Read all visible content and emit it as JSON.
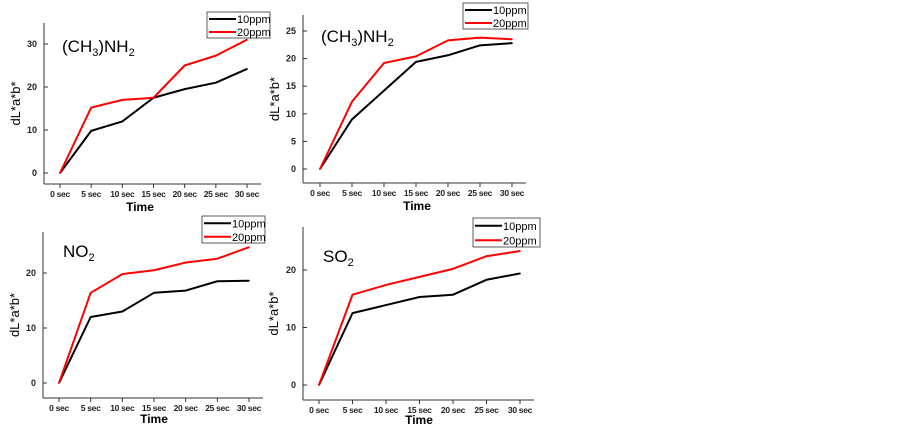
{
  "colors": {
    "10ppm": "#000000",
    "20ppm": "#ff0000"
  },
  "chart_data": [
    {
      "type": "line",
      "title": "(CH3)NH2",
      "title_main": "(CH",
      "title_sub1": "3",
      "title_mid": ")NH",
      "title_sub2": "2",
      "xlabel": "Time",
      "ylabel": "dL*a*b*",
      "categories": [
        "0 sec",
        "5 sec",
        "10 sec",
        "15 sec",
        "20 sec",
        "25 sec",
        "30 sec"
      ],
      "yticks": [
        0,
        10,
        20,
        30
      ],
      "ylim": [
        -2.5,
        35
      ],
      "legend": "top-right",
      "series": [
        {
          "name": "10ppm",
          "values": [
            0,
            9.8,
            12,
            17.5,
            19.5,
            21,
            24.2
          ]
        },
        {
          "name": "20ppm",
          "values": [
            0,
            15.2,
            17,
            17.5,
            25,
            27.3,
            31
          ]
        }
      ]
    },
    {
      "type": "line",
      "title": "(CH3)NH2",
      "title_main": "(CH",
      "title_sub1": "3",
      "title_mid": ")NH",
      "title_sub2": "2",
      "xlabel": "Time",
      "ylabel": "dL*a*b*",
      "categories": [
        "0 sec",
        "5 sec",
        "10 sec",
        "15 sec",
        "20 sec",
        "25 sec",
        "30 sec"
      ],
      "yticks": [
        0,
        5,
        10,
        15,
        20,
        25
      ],
      "ylim": [
        -2.5,
        27.5
      ],
      "legend": "top-right",
      "series": [
        {
          "name": "10ppm",
          "values": [
            0,
            9,
            14.2,
            19.4,
            20.6,
            22.4,
            22.8
          ]
        },
        {
          "name": "20ppm",
          "values": [
            0,
            12.2,
            19.2,
            20.4,
            23.3,
            23.8,
            23.5
          ]
        }
      ]
    },
    {
      "type": "line",
      "title": "NO2",
      "title_main": "NO",
      "title_sub1": "2",
      "title_mid": "",
      "title_sub2": "",
      "xlabel": "Time",
      "ylabel": "dL*a*b*",
      "categories": [
        "0 sec",
        "5 sec",
        "10 sec",
        "15 sec",
        "20 sec",
        "25 sec",
        "30 sec"
      ],
      "yticks": [
        0,
        10,
        20
      ],
      "ylim": [
        -2.5,
        27
      ],
      "legend": "top-right",
      "series": [
        {
          "name": "10ppm",
          "values": [
            0,
            12,
            13,
            16.4,
            16.8,
            18.5,
            18.6
          ]
        },
        {
          "name": "20ppm",
          "values": [
            0,
            16.4,
            19.8,
            20.5,
            21.9,
            22.6,
            24.7
          ]
        }
      ]
    },
    {
      "type": "line",
      "title": "SO2",
      "title_main": "SO",
      "title_sub1": "2",
      "title_mid": "",
      "title_sub2": "",
      "xlabel": "Time",
      "ylabel": "dL*a*b*",
      "categories": [
        "0 sec",
        "5 sec",
        "10 sec",
        "15 sec",
        "20 sec",
        "25 sec",
        "30 sec"
      ],
      "yticks": [
        0,
        10,
        20
      ],
      "ylim": [
        -2.5,
        27.5
      ],
      "legend": "top-right",
      "series": [
        {
          "name": "10ppm",
          "values": [
            0,
            12.5,
            13.9,
            15.3,
            15.7,
            18.3,
            19.4
          ]
        },
        {
          "name": "20ppm",
          "values": [
            0,
            15.7,
            17.4,
            18.8,
            20.2,
            22.4,
            23.3
          ]
        }
      ]
    }
  ]
}
